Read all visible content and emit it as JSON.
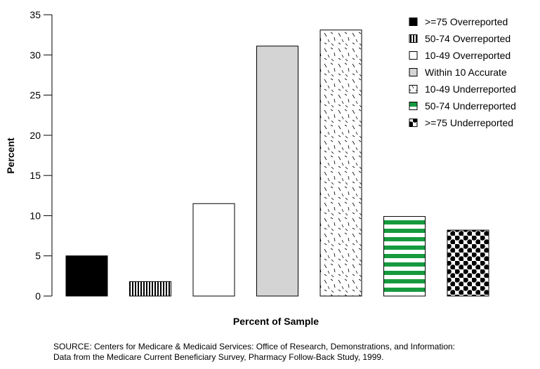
{
  "chart_data": {
    "type": "bar",
    "categories": [
      ">=75 Overreported",
      "50-74 Overreported",
      "10-49 Overreported",
      "Within 10 Accurate",
      "10-49 Underreported",
      "50-74 Underreported",
      ">=75 Underreported"
    ],
    "values": [
      5.0,
      1.8,
      11.5,
      31.1,
      33.1,
      9.9,
      8.2
    ],
    "ylabel": "Percent",
    "xlabel": "Percent of Sample",
    "ylim": [
      0,
      35
    ],
    "yticks": [
      0,
      5,
      10,
      15,
      20,
      25,
      30,
      35
    ],
    "grid": false,
    "legend_position": "top-right",
    "patterns": [
      "solid-black",
      "vertical-stripes",
      "white",
      "light-gray",
      "dashes",
      "green-horizontal-stripes",
      "black-dots"
    ],
    "colors": {
      "green": "#169a3e",
      "gray": "#d4d4d4",
      "black": "#000000"
    }
  },
  "source": {
    "line1": "SOURCE: Centers for Medicare & Medicaid Services: Office of Research, Demonstrations, and Information:",
    "line2": "Data from the Medicare Current Beneficiary Survey, Pharmacy Follow-Back Study, 1999."
  }
}
